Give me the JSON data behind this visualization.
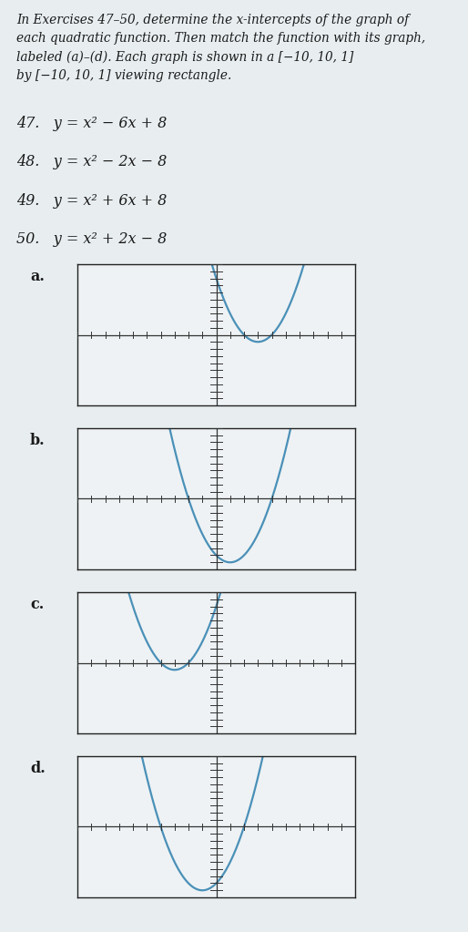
{
  "background_color": "#e8eef0",
  "graph_bg_color": "#eef2f4",
  "curve_color": "#4a90b8",
  "text_color": "#1a1a1a",
  "page_bg": "#e8eef0",
  "intro_lines": [
    "In Exercises 47–50, determine the x-intercepts of the graph of",
    "each quadratic function. Then match the function with its graph,",
    "labeled (a)–(d). Each graph is shown in a [−10, 10, 1]",
    "by [−10, 10, 1] viewing rectangle."
  ],
  "equations": [
    {
      "num": "47.",
      "text": "y = x² − 6x + 8"
    },
    {
      "num": "48.",
      "text": "y = x² − 2x − 8"
    },
    {
      "num": "49.",
      "text": "y = x² + 6x + 8"
    },
    {
      "num": "50.",
      "text": "y = x² + 2x − 8"
    }
  ],
  "graphs": [
    {
      "label": "a.",
      "coeffs": [
        1,
        -6,
        8
      ]
    },
    {
      "label": "b.",
      "coeffs": [
        1,
        -2,
        -8
      ]
    },
    {
      "label": "c.",
      "coeffs": [
        1,
        6,
        8
      ]
    },
    {
      "label": "d.",
      "coeffs": [
        1,
        2,
        -8
      ]
    }
  ],
  "xmin": -10,
  "xmax": 10,
  "ymin": -10,
  "ymax": 10
}
